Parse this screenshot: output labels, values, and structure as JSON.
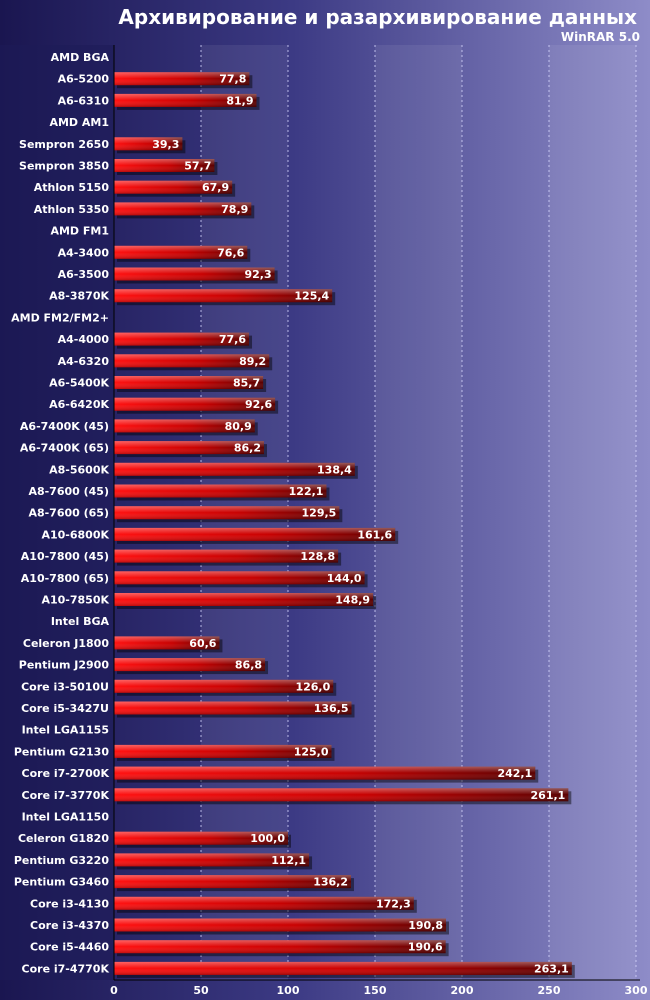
{
  "chart_data": {
    "type": "bar",
    "orientation": "horizontal",
    "title": "Архивирование и разархивирование данных",
    "subtitle": "WinRAR 5.0",
    "xlim": [
      0,
      300
    ],
    "x_ticks": [
      "0",
      "50",
      "100",
      "150",
      "200",
      "250",
      "300"
    ],
    "grid": "vertical dashed",
    "colors": {
      "background_top": "#1e1a5a",
      "background_bottom": "#8a88c8",
      "bar": "#ff0000",
      "bar_dark": "#660000",
      "text": "#ffffff"
    },
    "rows": [
      {
        "label": "AMD BGA",
        "value": null
      },
      {
        "label": "A6-5200",
        "value": 77.8,
        "value_label": "77,8"
      },
      {
        "label": "A6-6310",
        "value": 81.9,
        "value_label": "81,9"
      },
      {
        "label": "AMD AM1",
        "value": null
      },
      {
        "label": "Sempron 2650",
        "value": 39.3,
        "value_label": "39,3"
      },
      {
        "label": "Sempron 3850",
        "value": 57.7,
        "value_label": "57,7"
      },
      {
        "label": "Athlon 5150",
        "value": 67.9,
        "value_label": "67,9"
      },
      {
        "label": "Athlon 5350",
        "value": 78.9,
        "value_label": "78,9"
      },
      {
        "label": "AMD FM1",
        "value": null
      },
      {
        "label": "A4-3400",
        "value": 76.6,
        "value_label": "76,6"
      },
      {
        "label": "A6-3500",
        "value": 92.3,
        "value_label": "92,3"
      },
      {
        "label": "A8-3870K",
        "value": 125.4,
        "value_label": "125,4"
      },
      {
        "label": "AMD FM2/FM2+",
        "value": null
      },
      {
        "label": "A4-4000",
        "value": 77.6,
        "value_label": "77,6"
      },
      {
        "label": "A4-6320",
        "value": 89.2,
        "value_label": "89,2"
      },
      {
        "label": "A6-5400K",
        "value": 85.7,
        "value_label": "85,7"
      },
      {
        "label": "A6-6420K",
        "value": 92.6,
        "value_label": "92,6"
      },
      {
        "label": "A6-7400K (45)",
        "value": 80.9,
        "value_label": "80,9"
      },
      {
        "label": "A6-7400K (65)",
        "value": 86.2,
        "value_label": "86,2"
      },
      {
        "label": "A8-5600K",
        "value": 138.4,
        "value_label": "138,4"
      },
      {
        "label": "A8-7600 (45)",
        "value": 122.1,
        "value_label": "122,1"
      },
      {
        "label": "A8-7600 (65)",
        "value": 129.5,
        "value_label": "129,5"
      },
      {
        "label": "A10-6800K",
        "value": 161.6,
        "value_label": "161,6"
      },
      {
        "label": "A10-7800 (45)",
        "value": 128.8,
        "value_label": "128,8"
      },
      {
        "label": "A10-7800 (65)",
        "value": 144.0,
        "value_label": "144,0"
      },
      {
        "label": "A10-7850K",
        "value": 148.9,
        "value_label": "148,9"
      },
      {
        "label": "Intel BGA",
        "value": null
      },
      {
        "label": "Celeron J1800",
        "value": 60.6,
        "value_label": "60,6"
      },
      {
        "label": "Pentium J2900",
        "value": 86.8,
        "value_label": "86,8"
      },
      {
        "label": "Core i3-5010U",
        "value": 126.0,
        "value_label": "126,0"
      },
      {
        "label": "Core i5-3427U",
        "value": 136.5,
        "value_label": "136,5"
      },
      {
        "label": "Intel LGA1155",
        "value": null
      },
      {
        "label": "Pentium G2130",
        "value": 125.0,
        "value_label": "125,0"
      },
      {
        "label": "Core i7-2700K",
        "value": 242.1,
        "value_label": "242,1"
      },
      {
        "label": "Core i7-3770K",
        "value": 261.1,
        "value_label": "261,1"
      },
      {
        "label": "Intel LGA1150",
        "value": null
      },
      {
        "label": "Celeron G1820",
        "value": 100.0,
        "value_label": "100,0"
      },
      {
        "label": "Pentium G3220",
        "value": 112.1,
        "value_label": "112,1"
      },
      {
        "label": "Pentium G3460",
        "value": 136.2,
        "value_label": "136,2"
      },
      {
        "label": "Core i3-4130",
        "value": 172.3,
        "value_label": "172,3"
      },
      {
        "label": "Core i3-4370",
        "value": 190.8,
        "value_label": "190,8"
      },
      {
        "label": "Core i5-4460",
        "value": 190.6,
        "value_label": "190,6"
      },
      {
        "label": "Core i7-4770K",
        "value": 263.1,
        "value_label": "263,1"
      }
    ]
  }
}
